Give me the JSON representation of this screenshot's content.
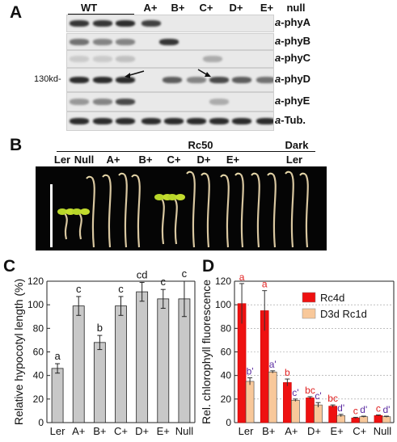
{
  "panelA": {
    "letter": "A",
    "wt_label": "WT",
    "lanes": [
      "A+",
      "B+",
      "C+",
      "D+",
      "E+",
      "null"
    ],
    "antibodies": [
      "a-phyA",
      "a-phyB",
      "a-phyC",
      "a-phyD",
      "a-phyE",
      "a-Tub."
    ],
    "antibody_prefix": "a",
    "antibody_targets": [
      "-phyA",
      "-phyB",
      "-phyC",
      "-phyD",
      "-phyE",
      "-Tub."
    ],
    "marker": "130kd-"
  },
  "panelB": {
    "letter": "B",
    "condition_rc50": "Rc50",
    "condition_dark": "Dark",
    "labels": [
      "Ler",
      "Null",
      "A+",
      "B+",
      "C+",
      "D+",
      "E+",
      "Ler"
    ]
  },
  "panelC": {
    "letter": "C",
    "chart_data": {
      "type": "bar",
      "ylabel": "Relative hypocotyl length (%)",
      "categories": [
        "Ler",
        "A+",
        "B+",
        "C+",
        "D+",
        "E+",
        "Null"
      ],
      "values": [
        46,
        99,
        68,
        99,
        111,
        105,
        105
      ],
      "errors": [
        4,
        8,
        6,
        8,
        8,
        8,
        15
      ],
      "letters": [
        "a",
        "c",
        "b",
        "c",
        "cd",
        "c",
        "c"
      ],
      "ylim": [
        0,
        120
      ],
      "yticks": [
        0,
        20,
        40,
        60,
        80,
        100,
        120
      ],
      "colors": {
        "bar": "#c8c8c8"
      }
    }
  },
  "panelD": {
    "letter": "D",
    "chart_data": {
      "type": "bar",
      "ylabel": "Rel. chlorophyll fluorescence",
      "categories": [
        "Ler",
        "B+",
        "A+",
        "D+",
        "E+",
        "C+",
        "Null"
      ],
      "series": [
        {
          "name": "Rc4d",
          "values": [
            101,
            95,
            34,
            21,
            14,
            4,
            6
          ],
          "errors": [
            17,
            17,
            3,
            1,
            1,
            0.5,
            0.5
          ],
          "letters": [
            "a",
            "a",
            "b",
            "bc",
            "bc",
            "c",
            "c"
          ],
          "color": "#ee1111"
        },
        {
          "name": "D3d Rc1d",
          "values": [
            35,
            43,
            19,
            15,
            6,
            5,
            5
          ],
          "errors": [
            3,
            1,
            1,
            2,
            1,
            0.5,
            0.5
          ],
          "letters": [
            "b'",
            "a'",
            "c'",
            "c'",
            "d'",
            "d'",
            "d'"
          ],
          "color": "#f8c89a"
        }
      ],
      "ylim": [
        0,
        120
      ],
      "yticks": [
        0,
        20,
        40,
        60,
        80,
        100,
        120
      ],
      "grid": true,
      "legend": "top-right",
      "colors": {
        "letter_primary": "#e02020",
        "letter_secondary": "#5a2aa0"
      }
    }
  }
}
